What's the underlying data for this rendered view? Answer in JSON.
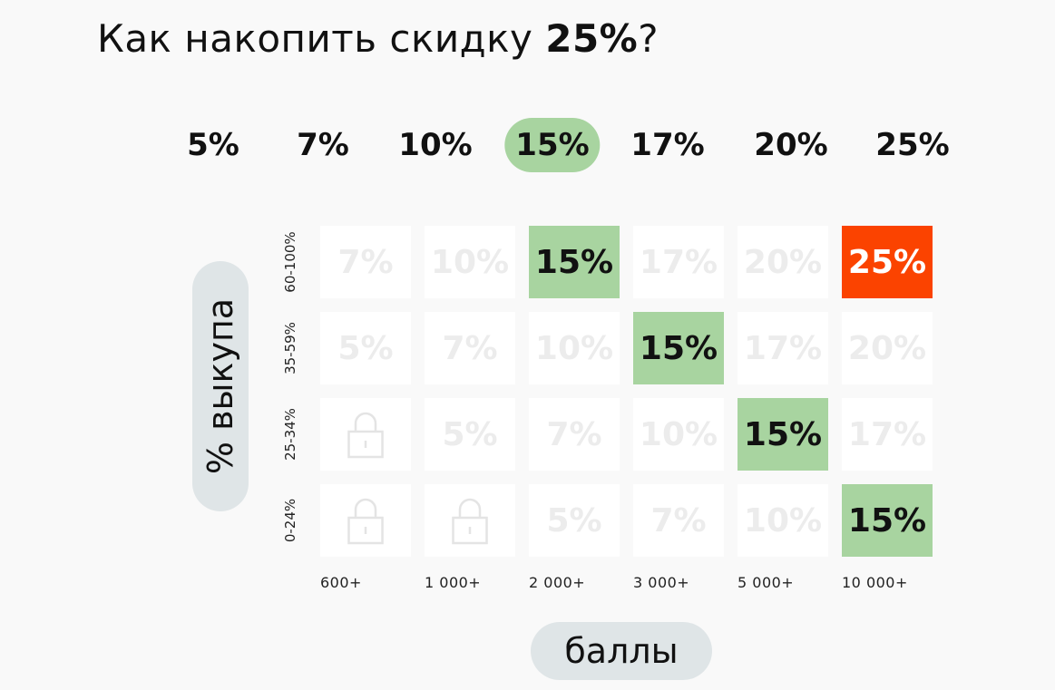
{
  "title": {
    "prefix": "Как накопить скидку ",
    "bold": "25%",
    "suffix": "?"
  },
  "levels": [
    {
      "label": "5%",
      "active": false
    },
    {
      "label": "7%",
      "active": false
    },
    {
      "label": "10%",
      "active": false
    },
    {
      "label": "15%",
      "active": true
    },
    {
      "label": "17%",
      "active": false
    },
    {
      "label": "20%",
      "active": false
    },
    {
      "label": "25%",
      "active": false
    }
  ],
  "y_axis_label": "% выкупа",
  "x_axis_label": "баллы",
  "rows": [
    {
      "label": "60-100%",
      "cells": [
        {
          "value": "7%",
          "state": "inactive"
        },
        {
          "value": "10%",
          "state": "inactive"
        },
        {
          "value": "15%",
          "state": "highlight"
        },
        {
          "value": "17%",
          "state": "inactive"
        },
        {
          "value": "20%",
          "state": "inactive"
        },
        {
          "value": "25%",
          "state": "top"
        }
      ]
    },
    {
      "label": "35-59%",
      "cells": [
        {
          "value": "5%",
          "state": "inactive"
        },
        {
          "value": "7%",
          "state": "inactive"
        },
        {
          "value": "10%",
          "state": "inactive"
        },
        {
          "value": "15%",
          "state": "highlight"
        },
        {
          "value": "17%",
          "state": "inactive"
        },
        {
          "value": "20%",
          "state": "inactive"
        }
      ]
    },
    {
      "label": "25-34%",
      "cells": [
        {
          "value": "",
          "state": "locked"
        },
        {
          "value": "5%",
          "state": "inactive"
        },
        {
          "value": "7%",
          "state": "inactive"
        },
        {
          "value": "10%",
          "state": "inactive"
        },
        {
          "value": "15%",
          "state": "highlight"
        },
        {
          "value": "17%",
          "state": "inactive"
        }
      ]
    },
    {
      "label": "0-24%",
      "cells": [
        {
          "value": "",
          "state": "locked"
        },
        {
          "value": "",
          "state": "locked"
        },
        {
          "value": "5%",
          "state": "inactive"
        },
        {
          "value": "7%",
          "state": "inactive"
        },
        {
          "value": "10%",
          "state": "inactive"
        },
        {
          "value": "15%",
          "state": "highlight"
        }
      ]
    }
  ],
  "columns": [
    "600+",
    "1 000+",
    "2 000+",
    "3 000+",
    "5 000+",
    "10 000+"
  ],
  "colors": {
    "highlight": "#a8d4a0",
    "top": "#fb4300",
    "inactive_text": "#ececec",
    "pill": "#dfe5e7"
  },
  "icons": {
    "locked": "lock-icon"
  }
}
